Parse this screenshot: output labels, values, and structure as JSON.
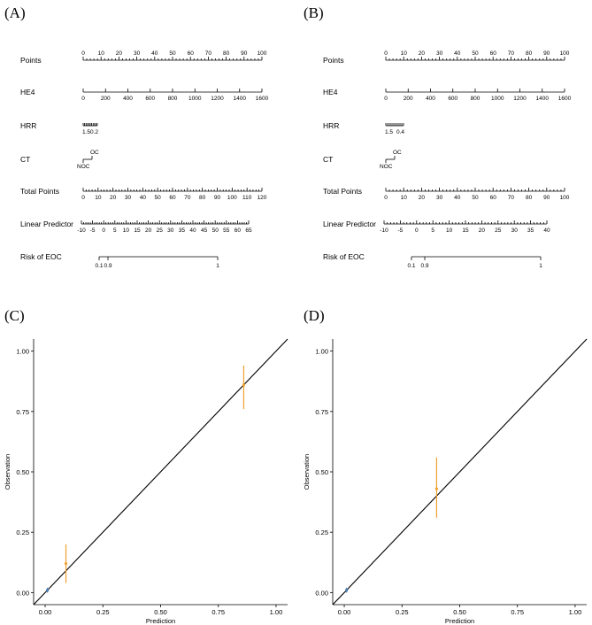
{
  "panels": [
    {
      "letter": "(A)",
      "chart_data": {
        "type": "nomogram",
        "rows": [
          {
            "label": "Points",
            "scale": "points",
            "min": 0,
            "max": 100,
            "labels": [
              "0",
              "10",
              "20",
              "30",
              "40",
              "50",
              "60",
              "70",
              "80",
              "90",
              "100"
            ]
          },
          {
            "label": "HE4",
            "min": 0,
            "max": 1600,
            "labels": [
              "0",
              "200",
              "400",
              "600",
              "800",
              "1000",
              "1200",
              "1400",
              "1600"
            ]
          },
          {
            "label": "HRR",
            "labels": [
              "1.5",
              "0.2"
            ]
          },
          {
            "label": "CT",
            "labels": [
              "NOC",
              "OC"
            ]
          },
          {
            "label": "Total Points",
            "min": 0,
            "max": 120,
            "labels": [
              "0",
              "10",
              "20",
              "30",
              "40",
              "50",
              "60",
              "70",
              "80",
              "90",
              "100",
              "110",
              "120"
            ]
          },
          {
            "label": "Linear Predictor",
            "min": -10,
            "max": 65,
            "labels": [
              "-10",
              "-5",
              "0",
              "5",
              "10",
              "15",
              "20",
              "25",
              "30",
              "35",
              "40",
              "45",
              "50",
              "55",
              "60",
              "65"
            ]
          },
          {
            "label": "Risk of EOC",
            "labels": [
              "0.1",
              "0.9",
              "1"
            ]
          }
        ]
      }
    },
    {
      "letter": "(B)",
      "chart_data": {
        "type": "nomogram",
        "rows": [
          {
            "label": "Points",
            "scale": "points",
            "min": 0,
            "max": 100,
            "labels": [
              "0",
              "10",
              "20",
              "30",
              "40",
              "50",
              "60",
              "70",
              "80",
              "90",
              "100"
            ]
          },
          {
            "label": "HE4",
            "min": 0,
            "max": 1600,
            "labels": [
              "0",
              "200",
              "400",
              "600",
              "800",
              "1000",
              "1200",
              "1400",
              "1600"
            ]
          },
          {
            "label": "HRR",
            "labels": [
              "1.5",
              "0.4"
            ]
          },
          {
            "label": "CT",
            "labels": [
              "NOC",
              "OC"
            ]
          },
          {
            "label": "Total Points",
            "min": 0,
            "max": 100,
            "labels": [
              "0",
              "10",
              "20",
              "30",
              "40",
              "50",
              "60",
              "70",
              "80",
              "90",
              "100"
            ]
          },
          {
            "label": "Linear Predictor",
            "min": -10,
            "max": 40,
            "labels": [
              "-10",
              "-5",
              "0",
              "5",
              "10",
              "15",
              "20",
              "25",
              "30",
              "35",
              "40"
            ]
          },
          {
            "label": "Risk of EOC",
            "labels": [
              "0.1",
              "0.9",
              "1"
            ]
          }
        ]
      }
    },
    {
      "letter": "(C)",
      "chart_data": {
        "type": "scatter",
        "xlabel": "Prediction",
        "ylabel": "Observation",
        "xlim": [
          -0.05,
          1.05
        ],
        "ylim": [
          -0.05,
          1.05
        ],
        "xticks": [
          "0.00",
          "0.25",
          "0.50",
          "0.75",
          "1.00"
        ],
        "yticks": [
          "0.00",
          "0.25",
          "0.50",
          "0.75",
          "1.00"
        ],
        "reference_line": "y = x",
        "points": [
          {
            "x": 0.01,
            "y": 0.01,
            "lo": 0.0,
            "hi": 0.02,
            "color": "#4a7eb5"
          },
          {
            "x": 0.09,
            "y": 0.12,
            "lo": 0.04,
            "hi": 0.2,
            "color": "#f0a030"
          },
          {
            "x": 0.86,
            "y": 0.86,
            "lo": 0.76,
            "hi": 0.94,
            "color": "#f0a030"
          }
        ]
      }
    },
    {
      "letter": "(D)",
      "chart_data": {
        "type": "scatter",
        "xlabel": "Prediction",
        "ylabel": "Observation",
        "xlim": [
          -0.05,
          1.05
        ],
        "ylim": [
          -0.05,
          1.05
        ],
        "xticks": [
          "0.00",
          "0.25",
          "0.50",
          "0.75",
          "1.00"
        ],
        "yticks": [
          "0.00",
          "0.25",
          "0.50",
          "0.75",
          "1.00"
        ],
        "reference_line": "y = x",
        "points": [
          {
            "x": 0.01,
            "y": 0.01,
            "lo": 0.0,
            "hi": 0.02,
            "color": "#4a7eb5"
          },
          {
            "x": 0.4,
            "y": 0.43,
            "lo": 0.31,
            "hi": 0.56,
            "color": "#f0a030"
          }
        ]
      }
    }
  ]
}
